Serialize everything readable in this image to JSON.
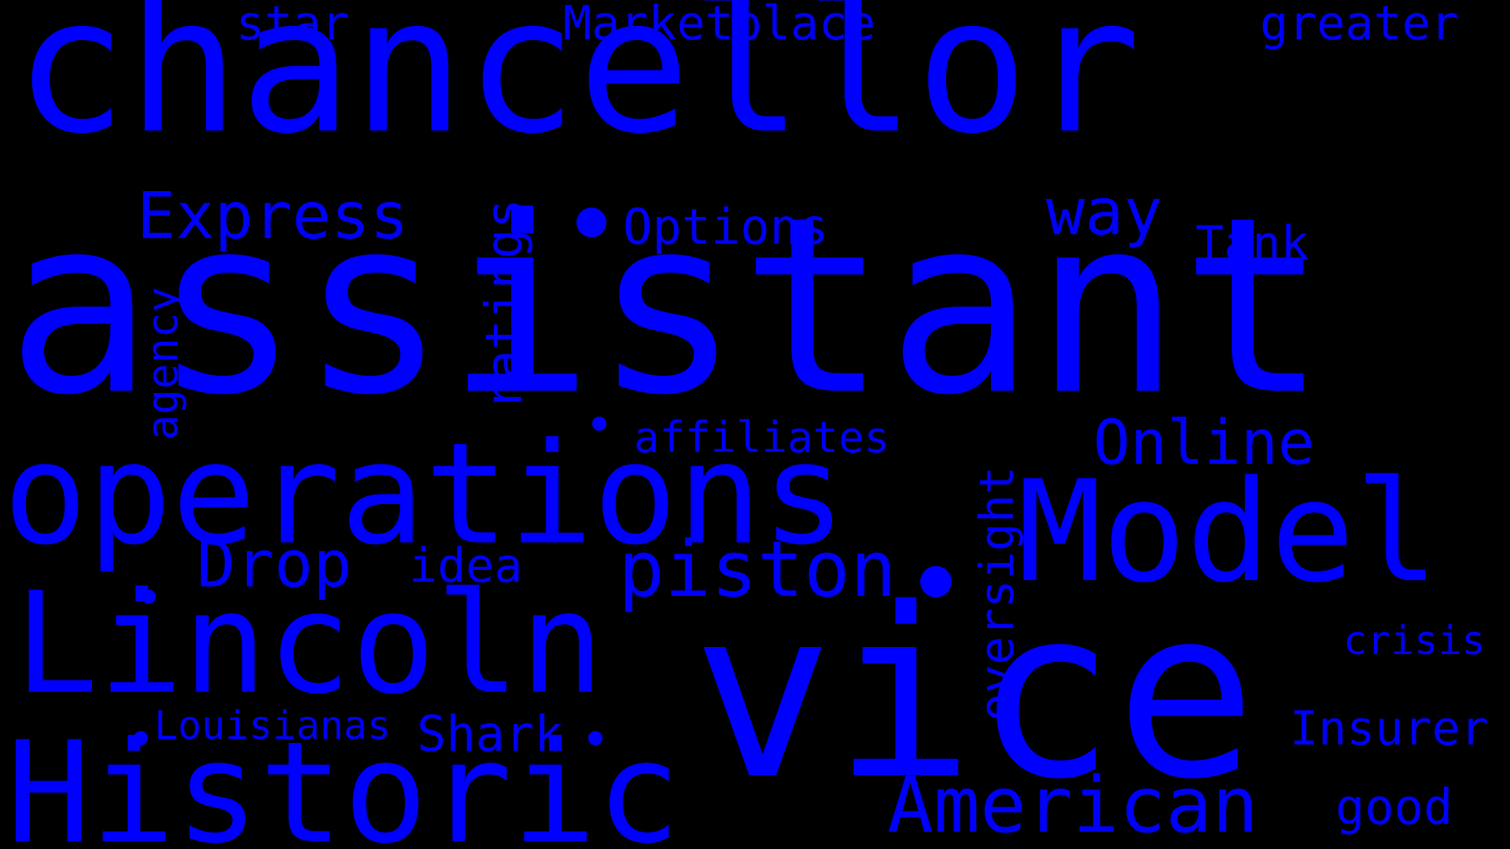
{
  "accent_color": "#0000ff",
  "background_color": "#000000",
  "words": {
    "chancellor": "chancellor",
    "assistant": "assistant",
    "operations": "operations",
    "vice": "vice",
    "lincoln": "Lincoln",
    "historic": "Historic",
    "model": "Model",
    "american": "American",
    "piston": "piston",
    "express": "Express",
    "drop": "Drop",
    "way": "way",
    "online": "Online",
    "options": "Options",
    "marketplace": "Marketplace",
    "star": "star",
    "greater": "greater",
    "tank": "Tank",
    "ratings": "ratings",
    "agency": "agency",
    "affiliates": "affiliates",
    "idea": "idea",
    "oversight": "oversight",
    "louisianas": "Louisianas",
    "shark": "Shark",
    "insurer": "Insurer",
    "crisis": "crisis",
    "good": "good"
  }
}
